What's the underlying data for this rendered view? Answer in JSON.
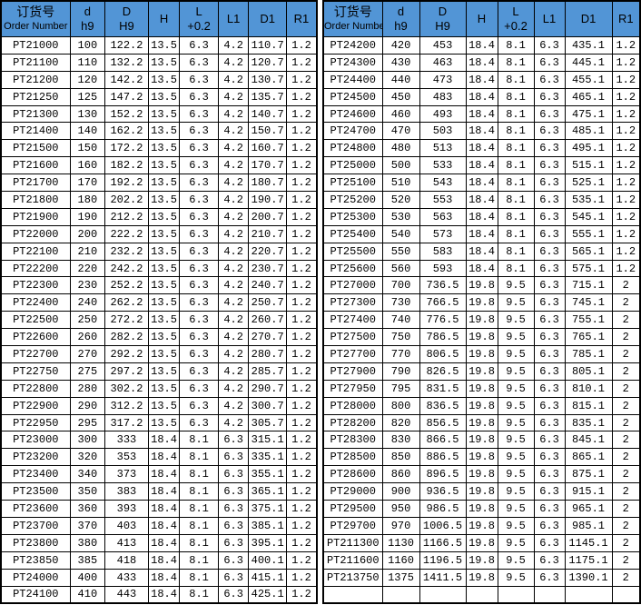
{
  "colors": {
    "header_bg": "#5295d6",
    "grid_border": "#000000",
    "row_bg": "#ffffff",
    "text": "#000000"
  },
  "header": {
    "order": {
      "zh": "订货号",
      "en": "Order Number"
    },
    "d": {
      "top": "d",
      "sub": "h9"
    },
    "DD": {
      "top": "D",
      "sub": "H9"
    },
    "H": "H",
    "L": {
      "top": "L",
      "sub": "+0.2"
    },
    "L1": "L1",
    "D1": "D1",
    "R1": "R1"
  },
  "left_rows": [
    [
      "PT21000",
      "100",
      "122.2",
      "13.5",
      "6.3",
      "4.2",
      "110.7",
      "1.2"
    ],
    [
      "PT21100",
      "110",
      "132.2",
      "13.5",
      "6.3",
      "4.2",
      "120.7",
      "1.2"
    ],
    [
      "PT21200",
      "120",
      "142.2",
      "13.5",
      "6.3",
      "4.2",
      "130.7",
      "1.2"
    ],
    [
      "PT21250",
      "125",
      "147.2",
      "13.5",
      "6.3",
      "4.2",
      "135.7",
      "1.2"
    ],
    [
      "PT21300",
      "130",
      "152.2",
      "13.5",
      "6.3",
      "4.2",
      "140.7",
      "1.2"
    ],
    [
      "PT21400",
      "140",
      "162.2",
      "13.5",
      "6.3",
      "4.2",
      "150.7",
      "1.2"
    ],
    [
      "PT21500",
      "150",
      "172.2",
      "13.5",
      "6.3",
      "4.2",
      "160.7",
      "1.2"
    ],
    [
      "PT21600",
      "160",
      "182.2",
      "13.5",
      "6.3",
      "4.2",
      "170.7",
      "1.2"
    ],
    [
      "PT21700",
      "170",
      "192.2",
      "13.5",
      "6.3",
      "4.2",
      "180.7",
      "1.2"
    ],
    [
      "PT21800",
      "180",
      "202.2",
      "13.5",
      "6.3",
      "4.2",
      "190.7",
      "1.2"
    ],
    [
      "PT21900",
      "190",
      "212.2",
      "13.5",
      "6.3",
      "4.2",
      "200.7",
      "1.2"
    ],
    [
      "PT22000",
      "200",
      "222.2",
      "13.5",
      "6.3",
      "4.2",
      "210.7",
      "1.2"
    ],
    [
      "PT22100",
      "210",
      "232.2",
      "13.5",
      "6.3",
      "4.2",
      "220.7",
      "1.2"
    ],
    [
      "PT22200",
      "220",
      "242.2",
      "13.5",
      "6.3",
      "4.2",
      "230.7",
      "1.2"
    ],
    [
      "PT22300",
      "230",
      "252.2",
      "13.5",
      "6.3",
      "4.2",
      "240.7",
      "1.2"
    ],
    [
      "PT22400",
      "240",
      "262.2",
      "13.5",
      "6.3",
      "4.2",
      "250.7",
      "1.2"
    ],
    [
      "PT22500",
      "250",
      "272.2",
      "13.5",
      "6.3",
      "4.2",
      "260.7",
      "1.2"
    ],
    [
      "PT22600",
      "260",
      "282.2",
      "13.5",
      "6.3",
      "4.2",
      "270.7",
      "1.2"
    ],
    [
      "PT22700",
      "270",
      "292.2",
      "13.5",
      "6.3",
      "4.2",
      "280.7",
      "1.2"
    ],
    [
      "PT22750",
      "275",
      "297.2",
      "13.5",
      "6.3",
      "4.2",
      "285.7",
      "1.2"
    ],
    [
      "PT22800",
      "280",
      "302.2",
      "13.5",
      "6.3",
      "4.2",
      "290.7",
      "1.2"
    ],
    [
      "PT22900",
      "290",
      "312.2",
      "13.5",
      "6.3",
      "4.2",
      "300.7",
      "1.2"
    ],
    [
      "PT22950",
      "295",
      "317.2",
      "13.5",
      "6.3",
      "4.2",
      "305.7",
      "1.2"
    ],
    [
      "PT23000",
      "300",
      "333",
      "18.4",
      "8.1",
      "6.3",
      "315.1",
      "1.2"
    ],
    [
      "PT23200",
      "320",
      "353",
      "18.4",
      "8.1",
      "6.3",
      "335.1",
      "1.2"
    ],
    [
      "PT23400",
      "340",
      "373",
      "18.4",
      "8.1",
      "6.3",
      "355.1",
      "1.2"
    ],
    [
      "PT23500",
      "350",
      "383",
      "18.4",
      "8.1",
      "6.3",
      "365.1",
      "1.2"
    ],
    [
      "PT23600",
      "360",
      "393",
      "18.4",
      "8.1",
      "6.3",
      "375.1",
      "1.2"
    ],
    [
      "PT23700",
      "370",
      "403",
      "18.4",
      "8.1",
      "6.3",
      "385.1",
      "1.2"
    ],
    [
      "PT23800",
      "380",
      "413",
      "18.4",
      "8.1",
      "6.3",
      "395.1",
      "1.2"
    ],
    [
      "PT23850",
      "385",
      "418",
      "18.4",
      "8.1",
      "6.3",
      "400.1",
      "1.2"
    ],
    [
      "PT24000",
      "400",
      "433",
      "18.4",
      "8.1",
      "6.3",
      "415.1",
      "1.2"
    ],
    [
      "PT24100",
      "410",
      "443",
      "18.4",
      "8.1",
      "6.3",
      "425.1",
      "1.2"
    ]
  ],
  "right_rows": [
    [
      "PT24200",
      "420",
      "453",
      "18.4",
      "8.1",
      "6.3",
      "435.1",
      "1.2"
    ],
    [
      "PT24300",
      "430",
      "463",
      "18.4",
      "8.1",
      "6.3",
      "445.1",
      "1.2"
    ],
    [
      "PT24400",
      "440",
      "473",
      "18.4",
      "8.1",
      "6.3",
      "455.1",
      "1.2"
    ],
    [
      "PT24500",
      "450",
      "483",
      "18.4",
      "8.1",
      "6.3",
      "465.1",
      "1.2"
    ],
    [
      "PT24600",
      "460",
      "493",
      "18.4",
      "8.1",
      "6.3",
      "475.1",
      "1.2"
    ],
    [
      "PT24700",
      "470",
      "503",
      "18.4",
      "8.1",
      "6.3",
      "485.1",
      "1.2"
    ],
    [
      "PT24800",
      "480",
      "513",
      "18.4",
      "8.1",
      "6.3",
      "495.1",
      "1.2"
    ],
    [
      "PT25000",
      "500",
      "533",
      "18.4",
      "8.1",
      "6.3",
      "515.1",
      "1.2"
    ],
    [
      "PT25100",
      "510",
      "543",
      "18.4",
      "8.1",
      "6.3",
      "525.1",
      "1.2"
    ],
    [
      "PT25200",
      "520",
      "553",
      "18.4",
      "8.1",
      "6.3",
      "535.1",
      "1.2"
    ],
    [
      "PT25300",
      "530",
      "563",
      "18.4",
      "8.1",
      "6.3",
      "545.1",
      "1.2"
    ],
    [
      "PT25400",
      "540",
      "573",
      "18.4",
      "8.1",
      "6.3",
      "555.1",
      "1.2"
    ],
    [
      "PT25500",
      "550",
      "583",
      "18.4",
      "8.1",
      "6.3",
      "565.1",
      "1.2"
    ],
    [
      "PT25600",
      "560",
      "593",
      "18.4",
      "8.1",
      "6.3",
      "575.1",
      "1.2"
    ],
    [
      "PT27000",
      "700",
      "736.5",
      "19.8",
      "9.5",
      "6.3",
      "715.1",
      "2"
    ],
    [
      "PT27300",
      "730",
      "766.5",
      "19.8",
      "9.5",
      "6.3",
      "745.1",
      "2"
    ],
    [
      "PT27400",
      "740",
      "776.5",
      "19.8",
      "9.5",
      "6.3",
      "755.1",
      "2"
    ],
    [
      "PT27500",
      "750",
      "786.5",
      "19.8",
      "9.5",
      "6.3",
      "765.1",
      "2"
    ],
    [
      "PT27700",
      "770",
      "806.5",
      "19.8",
      "9.5",
      "6.3",
      "785.1",
      "2"
    ],
    [
      "PT27900",
      "790",
      "826.5",
      "19.8",
      "9.5",
      "6.3",
      "805.1",
      "2"
    ],
    [
      "PT27950",
      "795",
      "831.5",
      "19.8",
      "9.5",
      "6.3",
      "810.1",
      "2"
    ],
    [
      "PT28000",
      "800",
      "836.5",
      "19.8",
      "9.5",
      "6.3",
      "815.1",
      "2"
    ],
    [
      "PT28200",
      "820",
      "856.5",
      "19.8",
      "9.5",
      "6.3",
      "835.1",
      "2"
    ],
    [
      "PT28300",
      "830",
      "866.5",
      "19.8",
      "9.5",
      "6.3",
      "845.1",
      "2"
    ],
    [
      "PT28500",
      "850",
      "886.5",
      "19.8",
      "9.5",
      "6.3",
      "865.1",
      "2"
    ],
    [
      "PT28600",
      "860",
      "896.5",
      "19.8",
      "9.5",
      "6.3",
      "875.1",
      "2"
    ],
    [
      "PT29000",
      "900",
      "936.5",
      "19.8",
      "9.5",
      "6.3",
      "915.1",
      "2"
    ],
    [
      "PT29500",
      "950",
      "986.5",
      "19.8",
      "9.5",
      "6.3",
      "965.1",
      "2"
    ],
    [
      "PT29700",
      "970",
      "1006.5",
      "19.8",
      "9.5",
      "6.3",
      "985.1",
      "2"
    ],
    [
      "PT211300",
      "1130",
      "1166.5",
      "19.8",
      "9.5",
      "6.3",
      "1145.1",
      "2"
    ],
    [
      "PT211600",
      "1160",
      "1196.5",
      "19.8",
      "9.5",
      "6.3",
      "1175.1",
      "2"
    ],
    [
      "PT213750",
      "1375",
      "1411.5",
      "19.8",
      "9.5",
      "6.3",
      "1390.1",
      "2"
    ],
    [
      "",
      "",
      "",
      "",
      "",
      "",
      "",
      ""
    ]
  ]
}
